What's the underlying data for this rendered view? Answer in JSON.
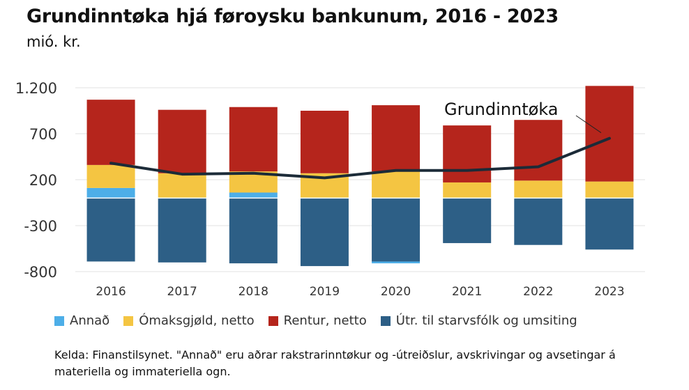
{
  "title": "Grundinntøka hjá føroysku bankunum, 2016 - 2023",
  "subtitle": "mió. kr.",
  "source": "Kelda: Finanstilsynet. \"Annað\" eru aðrar rakstrarinntøkur og -útreiðslur, avskrivingar og avsetingar á materiella og immateriella ogn.",
  "colors": {
    "annad": "#4daee8",
    "omaksgjold": "#f4c542",
    "rentur": "#b5251c",
    "utr": "#2d5f86",
    "line": "#1c2b38",
    "grid": "#e0e0e0"
  },
  "chart_data": {
    "type": "bar",
    "stacked": true,
    "categories": [
      "2016",
      "2017",
      "2018",
      "2019",
      "2020",
      "2021",
      "2022",
      "2023"
    ],
    "series": [
      {
        "name": "Annað",
        "values": [
          110,
          0,
          60,
          0,
          -20,
          0,
          0,
          0
        ]
      },
      {
        "name": "Ómaksgjøld, netto",
        "values": [
          250,
          270,
          230,
          270,
          290,
          170,
          190,
          180
        ]
      },
      {
        "name": "Rentur, netto",
        "values": [
          710,
          690,
          700,
          680,
          720,
          620,
          660,
          1040
        ]
      },
      {
        "name": "Útr. til starvsfólk og umsiting",
        "values": [
          -690,
          -700,
          -710,
          -740,
          -690,
          -490,
          -510,
          -560
        ]
      }
    ],
    "line": {
      "name": "Grundinntøka",
      "values": [
        380,
        260,
        270,
        220,
        300,
        300,
        340,
        650
      ]
    },
    "annotation": "Grundinntøka",
    "yticks": [
      1200,
      700,
      200,
      -300,
      -800
    ],
    "ytick_labels": [
      "1.200",
      "700",
      "200",
      "-300",
      "-800"
    ],
    "ylim": [
      -800,
      1200
    ],
    "grid": true,
    "legend": "bottom"
  }
}
